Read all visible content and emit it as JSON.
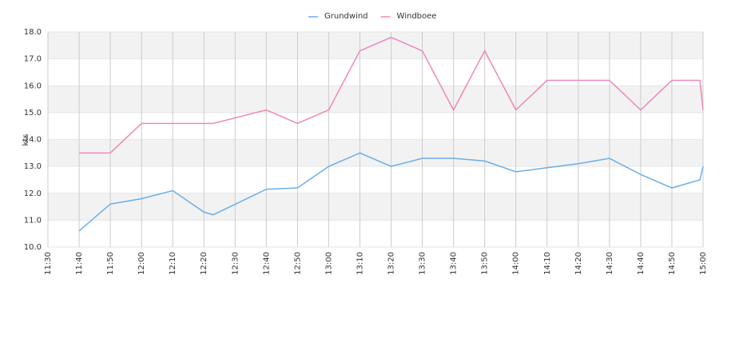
{
  "chart_data": {
    "type": "line",
    "y_label": "kts",
    "x": [
      "11:40",
      "11:50",
      "12:00",
      "12:10",
      "12:20",
      "12:23",
      "12:40",
      "12:50",
      "13:00",
      "13:10",
      "13:20",
      "13:30",
      "13:40",
      "13:50",
      "14:00",
      "14:10",
      "14:20",
      "14:30",
      "14:40",
      "14:50",
      "14:59",
      "15:00"
    ],
    "series": [
      {
        "name": "Grundwind",
        "color": "#6aaee8",
        "values": [
          10.6,
          11.6,
          11.8,
          12.1,
          11.3,
          11.2,
          12.15,
          12.2,
          13.0,
          13.5,
          13.0,
          13.3,
          13.3,
          13.2,
          12.8,
          12.95,
          13.1,
          13.3,
          12.7,
          12.2,
          12.5,
          13.0
        ]
      },
      {
        "name": "Windboee",
        "color": "#ee88bb",
        "values": [
          13.5,
          13.5,
          14.6,
          14.6,
          14.6,
          14.6,
          15.1,
          14.6,
          15.1,
          17.3,
          17.8,
          17.3,
          15.1,
          17.3,
          15.1,
          16.2,
          16.2,
          16.2,
          15.1,
          16.2,
          16.2,
          15.1
        ]
      }
    ],
    "xlim": [
      "11:30",
      "15:00"
    ],
    "xticks": [
      "11:30",
      "11:40",
      "11:50",
      "12:00",
      "12:10",
      "12:20",
      "12:30",
      "12:40",
      "12:50",
      "13:00",
      "13:10",
      "13:20",
      "13:30",
      "13:40",
      "13:50",
      "14:00",
      "14:10",
      "14:20",
      "14:30",
      "14:40",
      "14:50",
      "15:00"
    ],
    "ylim": [
      10,
      18
    ],
    "yticks": [
      {
        "value": 10,
        "label": "10.0"
      },
      {
        "value": 11,
        "label": "11.0"
      },
      {
        "value": 12,
        "label": "12.0"
      },
      {
        "value": 13,
        "label": "13.0"
      },
      {
        "value": 14,
        "label": "14.0"
      },
      {
        "value": 15,
        "label": "15.0"
      },
      {
        "value": 16,
        "label": "16.0"
      },
      {
        "value": 17,
        "label": "17.0"
      },
      {
        "value": 18,
        "label": "18.0"
      }
    ],
    "grid": true,
    "legend": "top"
  }
}
